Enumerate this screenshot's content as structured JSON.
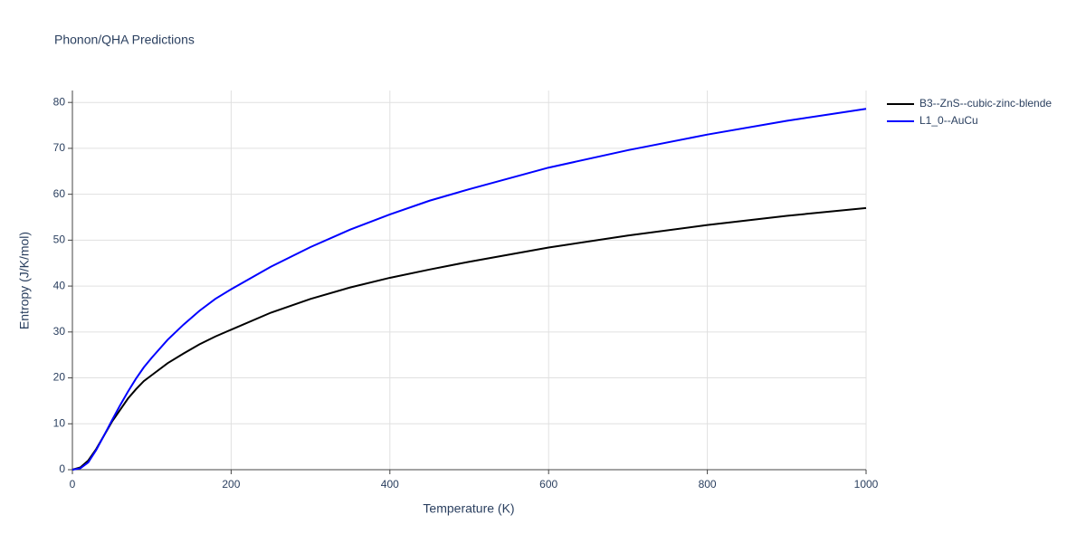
{
  "chart_data": {
    "type": "line",
    "title": "Phonon/QHA Predictions",
    "x_label": "Temperature (K)",
    "y_label": "Entropy (J/K/mol)",
    "x": [
      0,
      10,
      20,
      30,
      40,
      50,
      60,
      70,
      80,
      90,
      100,
      120,
      140,
      160,
      180,
      200,
      250,
      300,
      350,
      400,
      450,
      500,
      600,
      700,
      800,
      900,
      1000
    ],
    "series": [
      {
        "name": "B3--ZnS--cubic-zinc-blende",
        "color": "#000000",
        "values": [
          0,
          0.5,
          2,
          4.5,
          7.5,
          10.5,
          13,
          15.5,
          17.5,
          19.3,
          20.6,
          23.2,
          25.3,
          27.3,
          29,
          30.5,
          34.2,
          37.2,
          39.7,
          41.8,
          43.6,
          45.3,
          48.4,
          51,
          53.3,
          55.3,
          57
        ]
      },
      {
        "name": "L1_0--AuCu",
        "color": "#0000ff",
        "values": [
          0,
          0.3,
          1.6,
          4.3,
          7.5,
          10.8,
          14,
          17,
          19.8,
          22.3,
          24.4,
          28.3,
          31.6,
          34.6,
          37.2,
          39.3,
          44.2,
          48.5,
          52.3,
          55.6,
          58.6,
          61.1,
          65.8,
          69.6,
          73,
          76,
          78.6
        ]
      }
    ],
    "xlim": [
      0,
      1000
    ],
    "xticks": [
      0,
      200,
      400,
      600,
      800,
      1000
    ],
    "ylim": [
      0,
      82.6
    ],
    "yticks": [
      0,
      10,
      20,
      30,
      40,
      50,
      60,
      70,
      80
    ],
    "grid": true,
    "legend": "top-right"
  }
}
